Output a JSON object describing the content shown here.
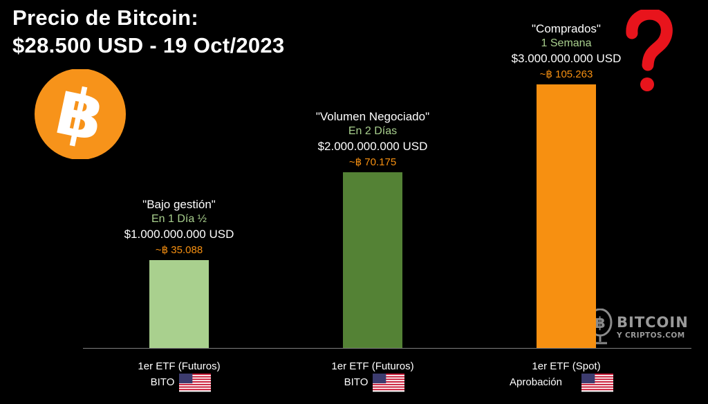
{
  "header": {
    "title_line1": "Precio de Bitcoin:",
    "title_line2": "$28.500 USD - 19 Oct/2023"
  },
  "logo": {
    "icon": "bitcoin-coin-icon",
    "color": "#F7931A",
    "symbol": "฿"
  },
  "question_mark": {
    "icon": "question-mark-icon",
    "color": "#E8141C"
  },
  "watermark": {
    "main": "BITCOIN",
    "sub": "Y CRIPTOS.COM",
    "icon": "microphone-bitcoin-icon"
  },
  "flag_icon": "us-flag-icon",
  "chart_data": {
    "type": "bar",
    "categories": [
      [
        "1er ETF (Futuros)",
        "BITO"
      ],
      [
        "1er ETF (Futuros)",
        "BITO"
      ],
      [
        "1er ETF (Spot)",
        "Aprobación"
      ]
    ],
    "values": [
      1000000000,
      2000000000,
      3000000000
    ],
    "ylim": [
      0,
      3000000000
    ],
    "grid": false,
    "bar_colors": [
      "#A9D08E",
      "#548235",
      "#F79011"
    ],
    "labels": [
      {
        "quote": "\"Bajo gestión\"",
        "period": "En 1 Día  ½",
        "usd": "$1.000.000.000 USD",
        "btc": "~฿ 35.088"
      },
      {
        "quote": "\"Volumen Negociado\"",
        "period": "En 2 Días",
        "usd": "$2.000.000.000 USD",
        "btc": "~฿ 70.175"
      },
      {
        "quote": "\"Comprados\"",
        "period": "1 Semana",
        "usd": "$3.000.000.000 USD",
        "btc": "~฿ 105.263"
      }
    ],
    "colors": {
      "quote": "#FFFFFF",
      "period": "#A9D08E",
      "usd": "#FFFFFF",
      "btc": "#F79011",
      "axis": "#7F7F7F",
      "category": "#FFFFFF"
    }
  }
}
